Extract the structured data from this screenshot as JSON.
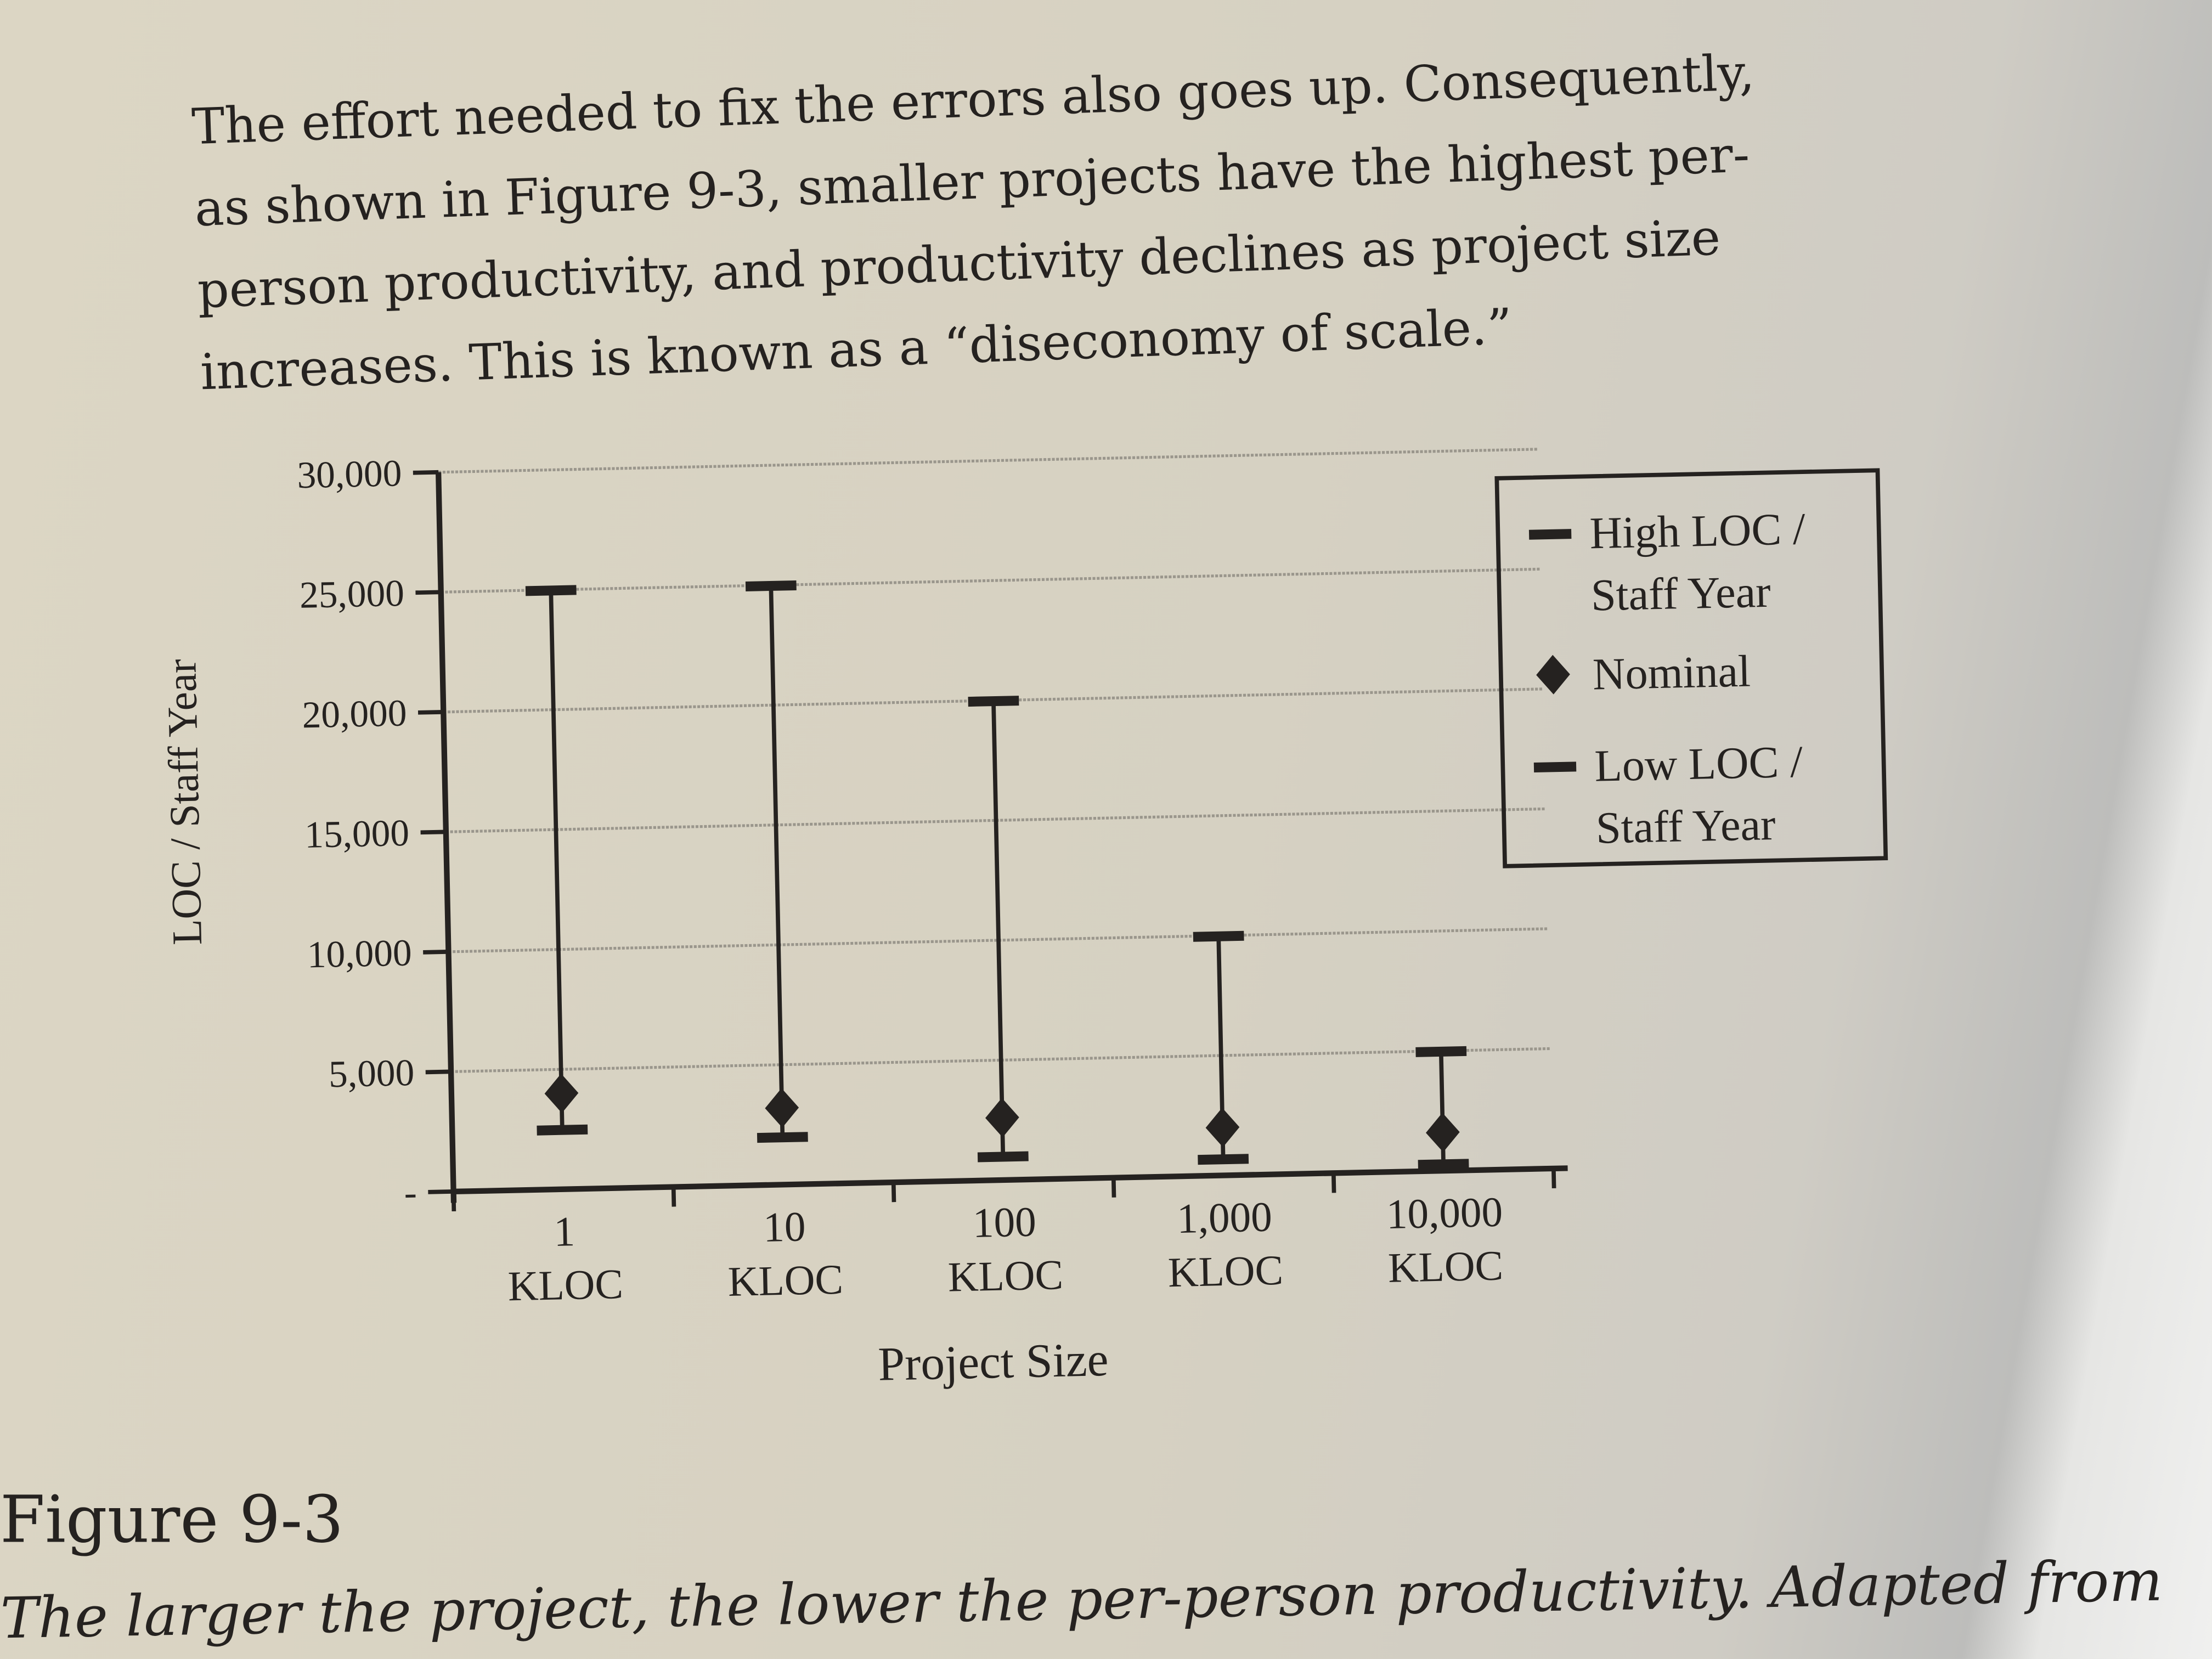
{
  "body_text": [
    "The effort needed to fix the errors also goes up. Consequently,",
    "as shown in Figure 9-3, smaller projects have the highest per-",
    "person productivity, and productivity declines as project size",
    "increases. This is known as a “diseconomy of scale.”"
  ],
  "figure": {
    "label": "Figure 9-3",
    "caption": "The larger the project, the lower the per-person productivity. Adapted from"
  },
  "chart_data": {
    "type": "error-bar",
    "title": "",
    "xlabel": "Project Size",
    "ylabel": "LOC / Staff Year",
    "categories": [
      "1 KLOC",
      "10 KLOC",
      "100 KLOC",
      "1,000 KLOC",
      "10,000 KLOC"
    ],
    "category_lines": [
      [
        "1",
        "KLOC"
      ],
      [
        "10",
        "KLOC"
      ],
      [
        "100",
        "KLOC"
      ],
      [
        "1,000",
        "KLOC"
      ],
      [
        "10,000",
        "KLOC"
      ]
    ],
    "y_ticks": [
      0,
      5000,
      10000,
      15000,
      20000,
      25000,
      30000
    ],
    "y_tick_labels": [
      "-",
      "5,000",
      "10,000",
      "15,000",
      "20,000",
      "25,000",
      "30,000"
    ],
    "ylim": [
      0,
      30000
    ],
    "grid": true,
    "legend_position": "right",
    "series": [
      {
        "name": "High LOC / Staff Year",
        "legend_lines": [
          "High LOC /",
          "Staff Year"
        ],
        "marker": "dash",
        "values": [
          25000,
          25000,
          20000,
          10000,
          5000
        ]
      },
      {
        "name": "Nominal",
        "legend_lines": [
          "Nominal"
        ],
        "marker": "diamond",
        "values": [
          4000,
          3200,
          2600,
          2000,
          1600
        ]
      },
      {
        "name": "Low LOC / Staff Year",
        "legend_lines": [
          "Low LOC /",
          "Staff Year"
        ],
        "marker": "dash",
        "values": [
          2500,
          2000,
          1000,
          700,
          300
        ]
      }
    ],
    "colors": {
      "ink": "#252220",
      "grid": "#9a968c"
    }
  }
}
